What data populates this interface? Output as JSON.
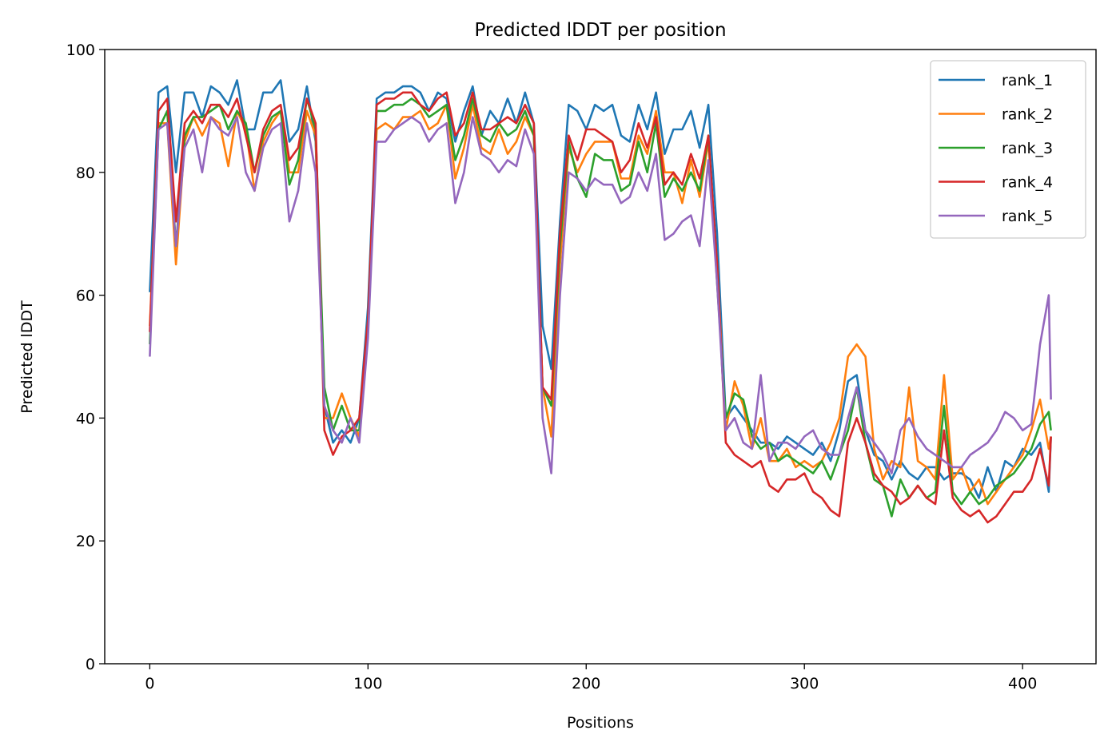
{
  "chart_data": {
    "type": "line",
    "title": "Predicted lDDT per position",
    "xlabel": "Positions",
    "ylabel": "Predicted lDDT",
    "xlim": [
      -20.65,
      433.65
    ],
    "ylim": [
      0,
      100
    ],
    "xticks": [
      0,
      100,
      200,
      300,
      400
    ],
    "yticks": [
      0,
      20,
      40,
      60,
      80,
      100
    ],
    "grid": false,
    "legend_position": "top-right",
    "x": [
      0,
      4,
      8,
      12,
      16,
      20,
      24,
      28,
      32,
      36,
      40,
      44,
      48,
      52,
      56,
      60,
      64,
      68,
      72,
      76,
      80,
      84,
      88,
      92,
      96,
      100,
      104,
      108,
      112,
      116,
      120,
      124,
      128,
      132,
      136,
      140,
      144,
      148,
      152,
      156,
      160,
      164,
      168,
      172,
      176,
      180,
      184,
      188,
      192,
      196,
      200,
      204,
      208,
      212,
      216,
      220,
      224,
      228,
      232,
      236,
      240,
      244,
      248,
      252,
      256,
      260,
      264,
      268,
      272,
      276,
      280,
      284,
      288,
      292,
      296,
      300,
      304,
      308,
      312,
      316,
      320,
      324,
      328,
      332,
      336,
      340,
      344,
      348,
      352,
      356,
      360,
      364,
      368,
      372,
      376,
      380,
      384,
      388,
      392,
      396,
      400,
      404,
      408,
      412,
      413
    ],
    "series": [
      {
        "name": "rank_1",
        "color": "#1f77b4",
        "values": [
          60.5,
          93,
          94,
          80,
          93,
          93,
          89,
          94,
          93,
          91,
          95,
          87,
          87,
          93,
          93,
          95,
          85,
          87,
          94,
          85,
          42,
          36,
          38,
          36,
          40,
          58,
          92,
          93,
          93,
          94,
          94,
          93,
          90,
          93,
          92,
          85,
          90,
          94,
          86,
          90,
          88,
          92,
          88,
          93,
          88,
          55,
          48,
          72,
          91,
          90,
          87,
          91,
          90,
          91,
          86,
          85,
          91,
          87,
          93,
          83,
          87,
          87,
          90,
          84,
          91,
          70,
          40,
          42,
          40,
          38,
          36,
          36,
          35,
          37,
          36,
          35,
          34,
          36,
          33,
          38,
          46,
          47,
          38,
          34,
          33,
          30,
          33,
          31,
          30,
          32,
          32,
          30,
          31,
          31,
          30,
          27,
          32,
          28,
          33,
          32,
          35,
          34,
          36,
          28,
          37
        ]
      },
      {
        "name": "rank_2",
        "color": "#ff7f0e",
        "values": [
          55,
          88,
          88,
          65,
          85,
          89,
          86,
          89,
          88,
          81,
          90,
          87,
          77,
          85,
          88,
          90,
          80,
          80,
          90,
          86,
          40,
          40,
          44,
          40,
          37,
          55,
          87,
          88,
          87,
          89,
          89,
          90,
          87,
          88,
          91,
          79,
          84,
          91,
          84,
          83,
          87,
          83,
          85,
          89,
          86,
          45,
          37,
          65,
          84,
          80,
          83,
          85,
          85,
          85,
          79,
          79,
          86,
          83,
          90,
          80,
          80,
          75,
          82,
          76,
          85,
          65,
          38,
          46,
          42,
          35,
          40,
          33,
          33,
          35,
          32,
          33,
          32,
          33,
          36,
          40,
          50,
          52,
          50,
          35,
          30,
          33,
          32,
          45,
          33,
          32,
          30,
          47,
          30,
          32,
          28,
          30,
          26,
          28,
          30,
          32,
          34,
          38,
          43,
          35,
          37
        ]
      },
      {
        "name": "rank_3",
        "color": "#2ca02c",
        "values": [
          52,
          87,
          90,
          68,
          86,
          89,
          89,
          90,
          91,
          87,
          90,
          88,
          80,
          86,
          89,
          90,
          78,
          82,
          92,
          87,
          45,
          38,
          42,
          38,
          38,
          56,
          90,
          90,
          91,
          91,
          92,
          91,
          89,
          90,
          91,
          82,
          86,
          92,
          86,
          85,
          88,
          86,
          87,
          90,
          86,
          45,
          42,
          68,
          85,
          79,
          76,
          83,
          82,
          82,
          77,
          78,
          85,
          80,
          88,
          76,
          79,
          77,
          80,
          77,
          86,
          62,
          40,
          44,
          43,
          37,
          35,
          36,
          33,
          34,
          33,
          32,
          31,
          33,
          30,
          34,
          38,
          45,
          36,
          30,
          29,
          24,
          30,
          27,
          29,
          27,
          28,
          42,
          28,
          26,
          28,
          26,
          27,
          29,
          30,
          31,
          33,
          35,
          39,
          41,
          38
        ]
      },
      {
        "name": "rank_4",
        "color": "#d62728",
        "values": [
          54,
          90,
          92,
          72,
          88,
          90,
          88,
          91,
          91,
          89,
          92,
          86,
          80,
          87,
          90,
          91,
          82,
          84,
          92,
          88,
          38,
          34,
          37,
          38,
          40,
          56,
          91,
          92,
          92,
          93,
          93,
          91,
          90,
          92,
          93,
          86,
          88,
          93,
          87,
          87,
          88,
          89,
          88,
          91,
          88,
          45,
          43,
          70,
          86,
          82,
          87,
          87,
          86,
          85,
          80,
          82,
          88,
          84,
          89,
          78,
          80,
          78,
          83,
          79,
          86,
          65,
          36,
          34,
          33,
          32,
          33,
          29,
          28,
          30,
          30,
          31,
          28,
          27,
          25,
          24,
          36,
          40,
          36,
          31,
          29,
          28,
          26,
          27,
          29,
          27,
          26,
          38,
          27,
          25,
          24,
          25,
          23,
          24,
          26,
          28,
          28,
          30,
          35,
          29,
          37
        ]
      },
      {
        "name": "rank_5",
        "color": "#9467bd",
        "values": [
          50,
          87,
          88,
          68,
          84,
          87,
          80,
          89,
          87,
          86,
          89,
          80,
          77,
          84,
          87,
          88,
          72,
          77,
          88,
          80,
          42,
          38,
          36,
          40,
          36,
          53,
          85,
          85,
          87,
          88,
          89,
          88,
          85,
          87,
          88,
          75,
          80,
          89,
          83,
          82,
          80,
          82,
          81,
          87,
          83,
          40,
          31,
          60,
          80,
          79,
          77,
          79,
          78,
          78,
          75,
          76,
          80,
          77,
          83,
          69,
          70,
          72,
          73,
          68,
          82,
          62,
          38,
          40,
          36,
          35,
          47,
          33,
          36,
          36,
          35,
          37,
          38,
          35,
          34,
          34,
          40,
          45,
          38,
          36,
          34,
          31,
          38,
          40,
          37,
          35,
          34,
          33,
          32,
          32,
          34,
          35,
          36,
          38,
          41,
          40,
          38,
          39,
          52,
          60,
          43
        ]
      }
    ]
  }
}
